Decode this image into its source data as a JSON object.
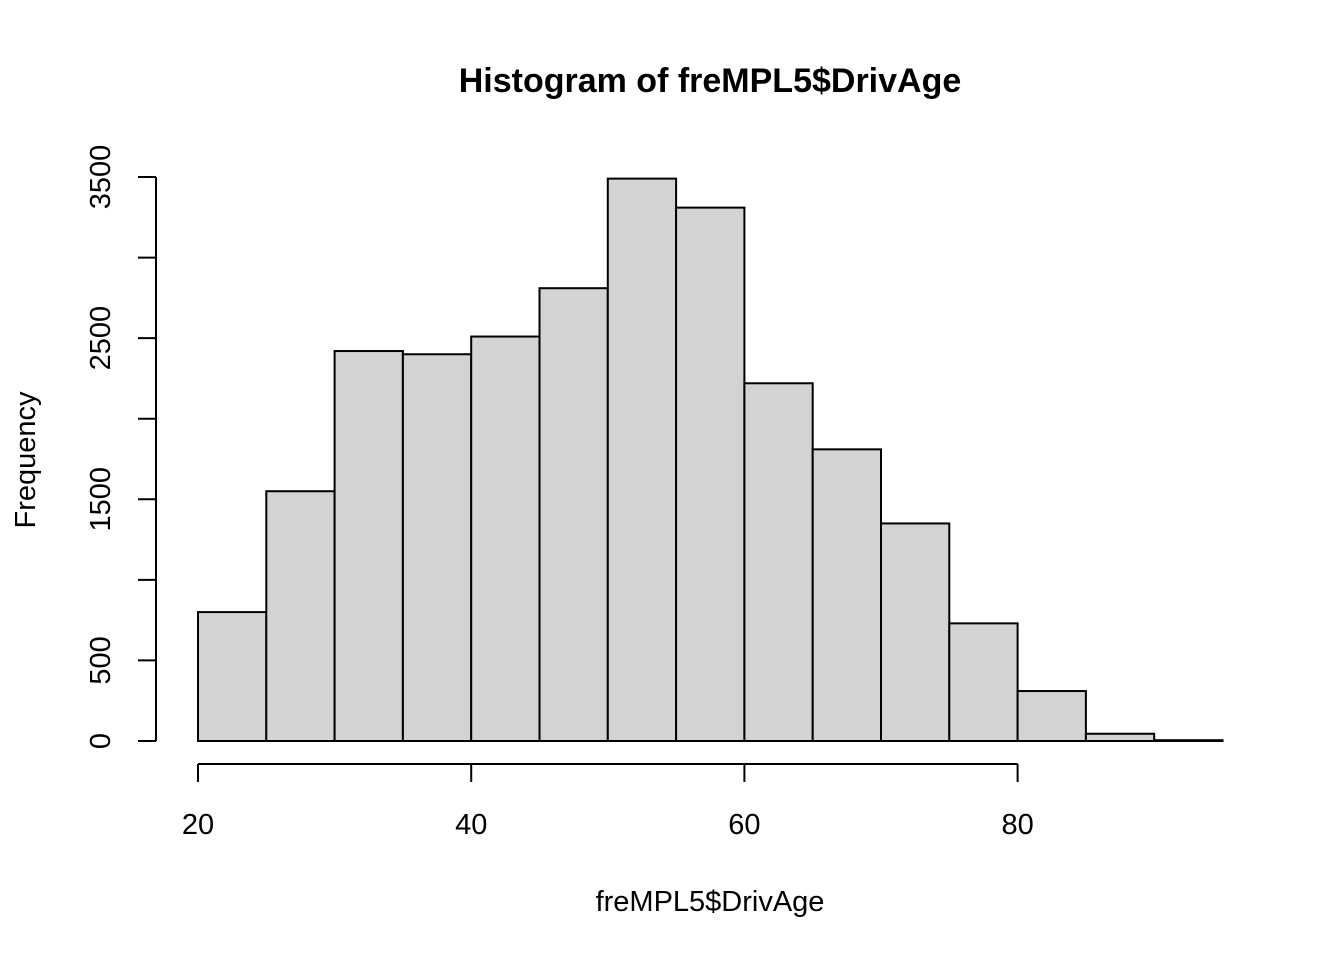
{
  "chart_data": {
    "type": "bar",
    "title": "Histogram of freMPL5$DrivAge",
    "xlabel": "freMPL5$DrivAge",
    "ylabel": "Frequency",
    "bins": [
      {
        "start": 20,
        "end": 25,
        "value": 800
      },
      {
        "start": 25,
        "end": 30,
        "value": 1550
      },
      {
        "start": 30,
        "end": 35,
        "value": 2420
      },
      {
        "start": 35,
        "end": 40,
        "value": 2400
      },
      {
        "start": 40,
        "end": 45,
        "value": 2510
      },
      {
        "start": 45,
        "end": 50,
        "value": 2810
      },
      {
        "start": 50,
        "end": 55,
        "value": 3490
      },
      {
        "start": 55,
        "end": 60,
        "value": 3310
      },
      {
        "start": 60,
        "end": 65,
        "value": 2220
      },
      {
        "start": 65,
        "end": 70,
        "value": 1810
      },
      {
        "start": 70,
        "end": 75,
        "value": 1350
      },
      {
        "start": 75,
        "end": 80,
        "value": 730
      },
      {
        "start": 80,
        "end": 85,
        "value": 310
      },
      {
        "start": 85,
        "end": 90,
        "value": 45
      },
      {
        "start": 90,
        "end": 95,
        "value": 5
      }
    ],
    "xlim": [
      20,
      95
    ],
    "ylim": [
      0,
      3500
    ],
    "x_ticks": [
      20,
      40,
      60,
      80
    ],
    "y_ticks": [
      0,
      500,
      1000,
      1500,
      2000,
      2500,
      3000,
      3500
    ],
    "y_tick_labels": [
      "0",
      "500",
      "",
      "1500",
      "",
      "2500",
      "",
      "3500"
    ],
    "grid": false,
    "bar_color": "#d3d3d3",
    "edge_color": "#000000"
  }
}
